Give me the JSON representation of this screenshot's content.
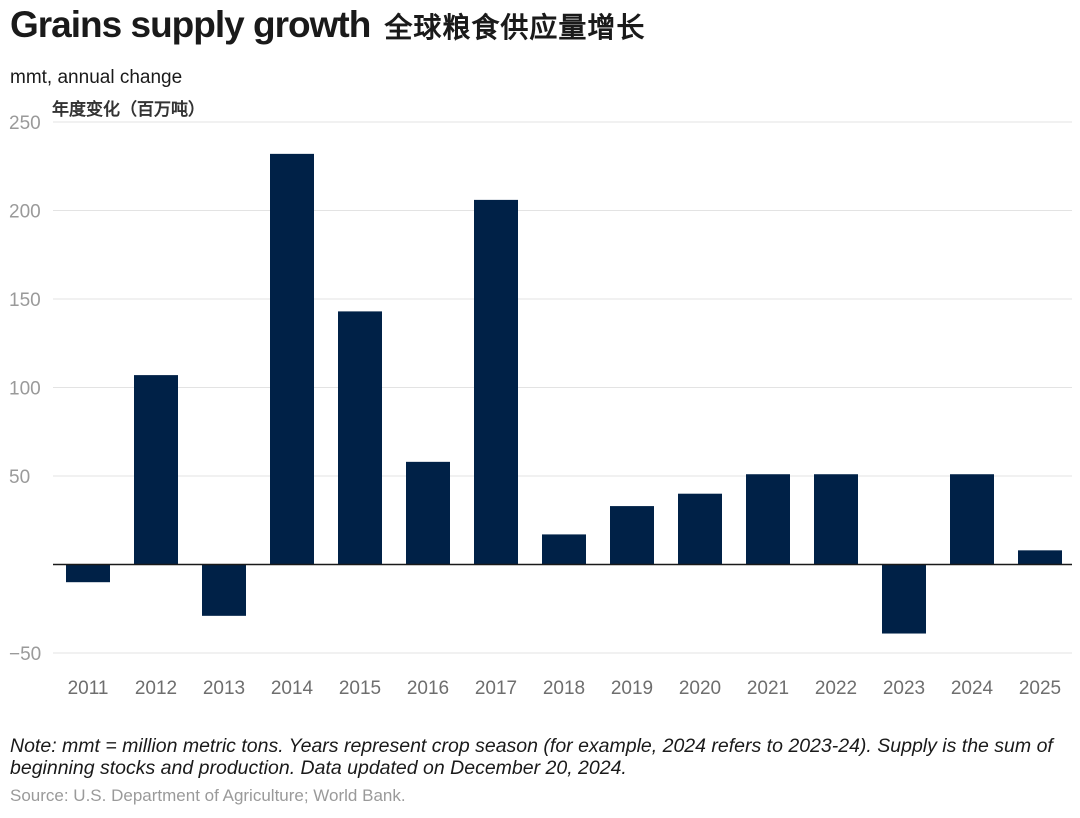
{
  "header": {
    "title_en": "Grains supply growth",
    "title_cn": "全球粮食供应量增长",
    "unit_en": "mmt, annual change",
    "unit_cn": "年度变化（百万吨）"
  },
  "chart_data": {
    "type": "bar",
    "title": "Grains supply growth",
    "ylabel": "mmt, annual change",
    "xlabel": "",
    "categories": [
      "2011",
      "2012",
      "2013",
      "2014",
      "2015",
      "2016",
      "2017",
      "2018",
      "2019",
      "2020",
      "2021",
      "2022",
      "2023",
      "2024",
      "2025"
    ],
    "values": [
      -10,
      107,
      -29,
      232,
      143,
      58,
      206,
      17,
      33,
      40,
      51,
      51,
      -39,
      51,
      8
    ],
    "ylim": [
      -50,
      250
    ],
    "yticks": [
      250,
      200,
      150,
      100,
      50,
      -50
    ],
    "ytick_labels": [
      "250",
      "200",
      "150",
      "100",
      "50",
      "−50"
    ],
    "grid": true,
    "bar_color": "#002147",
    "grid_color": "#e3e3e3",
    "tick_color": "#9a9a9a"
  },
  "footer": {
    "note": "Note: mmt = million metric tons. Years represent crop season (for example, 2024 refers to 2023-24). Supply is the sum of beginning stocks and production. Data updated on December 20, 2024.",
    "source": "Source: U.S. Department of Agriculture; World Bank."
  }
}
